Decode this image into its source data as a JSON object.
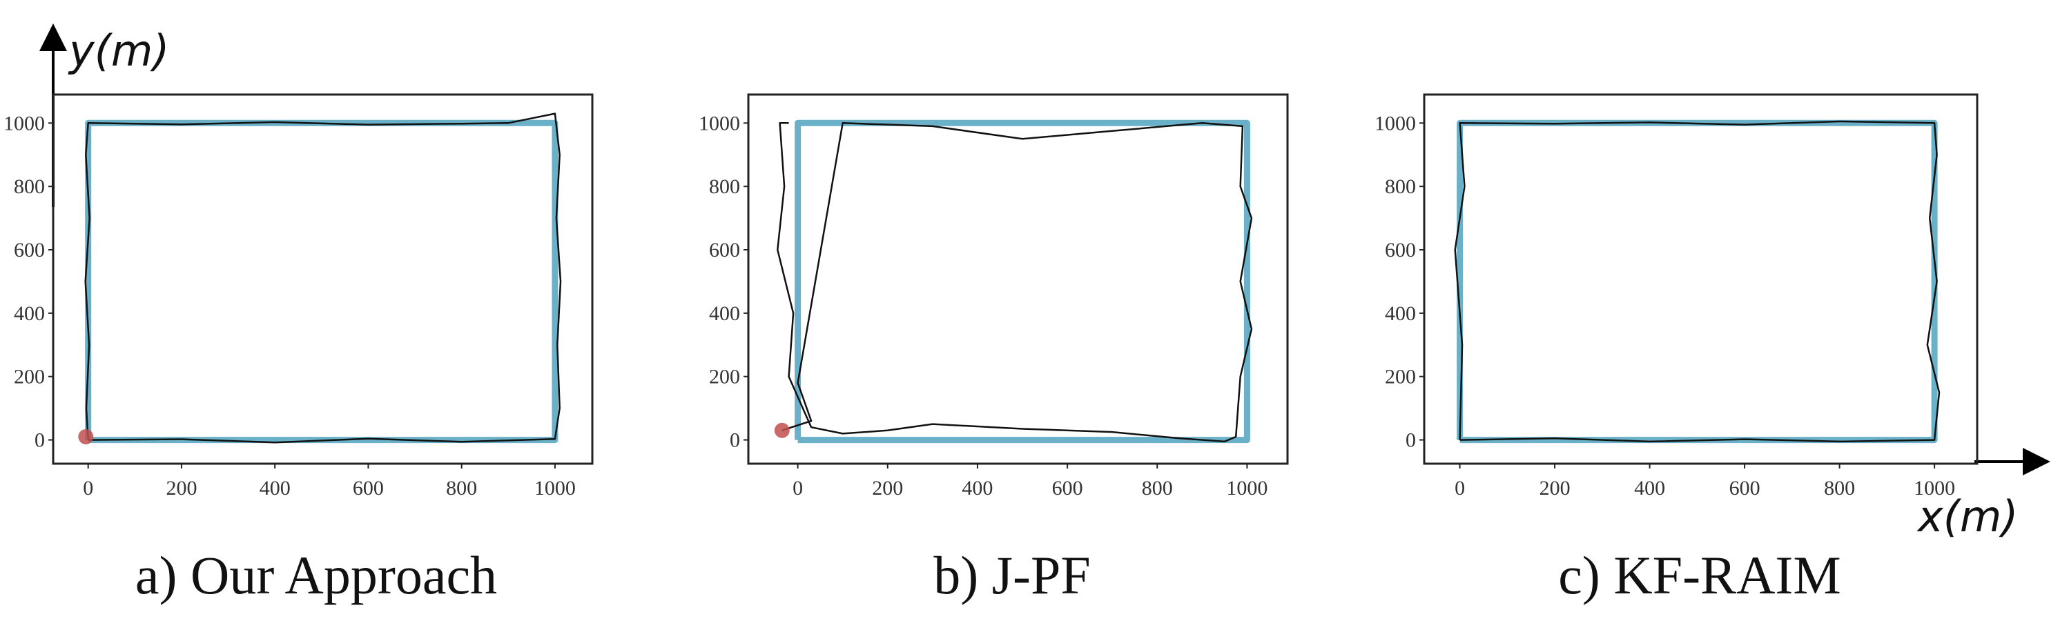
{
  "figure": {
    "axis_titles": {
      "x": "x(m)",
      "y": "y(m)"
    },
    "colors": {
      "reference": "#6ab0c8",
      "estimate": "#111111",
      "start_marker": "#c0504d"
    }
  },
  "chart_data": [
    {
      "type": "line",
      "caption": "a) Our Approach",
      "xlim": [
        -75,
        1080
      ],
      "ylim": [
        -75,
        1090
      ],
      "xticks": [
        0,
        200,
        400,
        600,
        800,
        1000
      ],
      "yticks": [
        0,
        200,
        400,
        600,
        800,
        1000
      ],
      "xlabel": "x(m)",
      "ylabel": "y(m)",
      "series": [
        {
          "x": [
            0,
            1000,
            1000,
            0,
            0
          ],
          "y": [
            0,
            0,
            1000,
            1000,
            0
          ]
        },
        {
          "x": [
            0,
            200,
            400,
            600,
            800,
            1000,
            1010,
            1005,
            1012,
            1003,
            1010,
            1000,
            900,
            800,
            600,
            400,
            200,
            0,
            -5,
            3,
            -6,
            2,
            -4,
            0
          ],
          "y": [
            0,
            2,
            -8,
            4,
            -6,
            3,
            100,
            300,
            500,
            700,
            900,
            1030,
            1000,
            998,
            995,
            1003,
            996,
            1000,
            900,
            700,
            500,
            300,
            100,
            0
          ]
        }
      ],
      "start_marker": {
        "x": -5,
        "y": 10
      }
    },
    {
      "type": "line",
      "caption": "b) J-PF",
      "xlim": [
        -110,
        1090
      ],
      "ylim": [
        -75,
        1090
      ],
      "xticks": [
        0,
        200,
        400,
        600,
        800,
        1000
      ],
      "yticks": [
        0,
        200,
        400,
        600,
        800,
        1000
      ],
      "xlabel": "",
      "ylabel": "",
      "series": [
        {
          "x": [
            0,
            1000,
            1000,
            0,
            0
          ],
          "y": [
            0,
            0,
            1000,
            1000,
            0
          ]
        },
        {
          "x": [
            -35,
            30,
            0,
            100,
            300,
            500,
            700,
            900,
            990,
            985,
            1010,
            985,
            1010,
            985,
            975,
            950,
            850,
            700,
            500,
            300,
            200,
            100,
            30,
            -20,
            -10,
            -45,
            -30,
            -40,
            -20
          ],
          "y": [
            30,
            60,
            180,
            1000,
            990,
            950,
            975,
            1000,
            990,
            800,
            700,
            500,
            350,
            200,
            10,
            -5,
            5,
            25,
            35,
            50,
            30,
            20,
            40,
            200,
            400,
            600,
            800,
            1000,
            1000
          ]
        }
      ],
      "start_marker": {
        "x": -35,
        "y": 30
      }
    },
    {
      "type": "line",
      "caption": "c) KF-RAIM",
      "xlim": [
        -75,
        1090
      ],
      "ylim": [
        -75,
        1090
      ],
      "xticks": [
        0,
        200,
        400,
        600,
        800,
        1000
      ],
      "yticks": [
        0,
        200,
        400,
        600,
        800,
        1000
      ],
      "xlabel": "x(m)",
      "ylabel": "",
      "series": [
        {
          "x": [
            0,
            1000,
            1000,
            0,
            0
          ],
          "y": [
            0,
            0,
            1000,
            1000,
            0
          ]
        },
        {
          "x": [
            0,
            200,
            400,
            600,
            800,
            1000,
            1010,
            985,
            1005,
            990,
            1005,
            1000,
            800,
            600,
            400,
            200,
            0,
            10,
            -10,
            5,
            0
          ],
          "y": [
            0,
            5,
            -5,
            2,
            -5,
            0,
            150,
            300,
            500,
            700,
            900,
            1000,
            1005,
            995,
            1002,
            998,
            1000,
            800,
            600,
            300,
            0
          ]
        }
      ],
      "start_marker": null
    }
  ]
}
